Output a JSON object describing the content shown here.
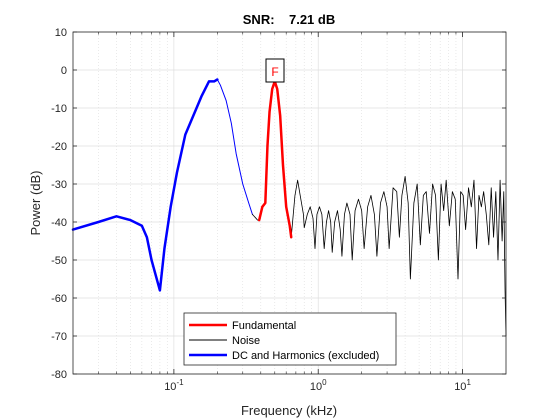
{
  "chart_data": {
    "type": "line",
    "title": "SNR:    7.21 dB",
    "xlabel": "Frequency (kHz)",
    "ylabel": "Power (dB)",
    "xscale": "log",
    "xlim": [
      0.02,
      20
    ],
    "ylim": [
      -80,
      10
    ],
    "yticks": [
      10,
      0,
      -10,
      -20,
      -30,
      -40,
      -50,
      -60,
      -70,
      -80
    ],
    "xticks": [
      {
        "value": 0.1,
        "base": "10",
        "exp": "-1"
      },
      {
        "value": 1,
        "base": "10",
        "exp": "0"
      },
      {
        "value": 10,
        "base": "10",
        "exp": "1"
      }
    ],
    "grid": true,
    "legend_placement": "bottom-center",
    "fundamental_marker": {
      "label": "F",
      "x": 0.5,
      "y": -3
    },
    "series": [
      {
        "name": "Fundamental",
        "color": "#ff0000",
        "width": 2.5,
        "points": [
          [
            0.39,
            -39.5
          ],
          [
            0.41,
            -36
          ],
          [
            0.43,
            -35
          ],
          [
            0.445,
            -20
          ],
          [
            0.46,
            -11
          ],
          [
            0.48,
            -5
          ],
          [
            0.5,
            -3
          ],
          [
            0.52,
            -5
          ],
          [
            0.545,
            -12
          ],
          [
            0.57,
            -25
          ],
          [
            0.6,
            -36
          ],
          [
            0.635,
            -41
          ],
          [
            0.65,
            -44
          ]
        ]
      },
      {
        "name": "Noise",
        "color": "#000000",
        "width": 0.8,
        "segments": [
          [
            [
              0.35,
              -38
            ],
            [
              0.37,
              -39
            ],
            [
              0.38,
              -39.5
            ],
            [
              0.39,
              -39.5
            ]
          ],
          [
            [
              0.65,
              -44
            ],
            [
              0.69,
              -33
            ],
            [
              0.72,
              -29
            ],
            [
              0.75,
              -33
            ],
            [
              0.79,
              -38
            ],
            [
              0.8,
              -41.5
            ],
            [
              0.84,
              -38
            ],
            [
              0.88,
              -36
            ],
            [
              0.92,
              -39
            ],
            [
              0.95,
              -47
            ],
            [
              0.98,
              -38
            ],
            [
              1.02,
              -36
            ],
            [
              1.06,
              -38
            ],
            [
              1.1,
              -47
            ],
            [
              1.14,
              -40
            ],
            [
              1.18,
              -37
            ],
            [
              1.22,
              -40
            ],
            [
              1.25,
              -48
            ],
            [
              1.3,
              -40
            ],
            [
              1.36,
              -37
            ],
            [
              1.42,
              -42
            ],
            [
              1.46,
              -49
            ],
            [
              1.52,
              -38
            ],
            [
              1.58,
              -35
            ],
            [
              1.66,
              -38
            ],
            [
              1.72,
              -50
            ],
            [
              1.8,
              -37
            ],
            [
              1.9,
              -34
            ],
            [
              2,
              -37
            ],
            [
              2.08,
              -47
            ],
            [
              2.2,
              -36
            ],
            [
              2.32,
              -33
            ],
            [
              2.45,
              -38
            ],
            [
              2.55,
              -49
            ],
            [
              2.7,
              -35
            ],
            [
              2.85,
              -32
            ],
            [
              3,
              -36
            ],
            [
              3.1,
              -47
            ],
            [
              3.3,
              -31
            ],
            [
              3.5,
              -32
            ],
            [
              3.65,
              -44
            ],
            [
              3.8,
              -33
            ],
            [
              4,
              -28
            ],
            [
              4.2,
              -35
            ],
            [
              4.35,
              -55
            ],
            [
              4.6,
              -35
            ],
            [
              4.85,
              -30
            ],
            [
              5.1,
              -46
            ],
            [
              5.35,
              -33
            ],
            [
              5.6,
              -32
            ],
            [
              5.9,
              -43
            ],
            [
              6.2,
              -30
            ],
            [
              6.5,
              -33
            ],
            [
              6.8,
              -50
            ],
            [
              7.1,
              -30
            ],
            [
              7.4,
              -37
            ],
            [
              7.7,
              -29
            ],
            [
              8.1,
              -41
            ],
            [
              8.5,
              -32
            ],
            [
              8.9,
              -34
            ],
            [
              9.3,
              -55
            ],
            [
              9.7,
              -32
            ],
            [
              10.1,
              -33
            ],
            [
              10.5,
              -42
            ],
            [
              11,
              -31
            ],
            [
              11.5,
              -36
            ],
            [
              12,
              -29
            ],
            [
              12.5,
              -47
            ],
            [
              13,
              -33
            ],
            [
              13.5,
              -36
            ],
            [
              14,
              -32
            ],
            [
              14.6,
              -38
            ],
            [
              15.2,
              -46
            ],
            [
              15.8,
              -31
            ],
            [
              16.4,
              -44
            ],
            [
              17,
              -32
            ],
            [
              17.6,
              -50
            ],
            [
              18.2,
              -29
            ],
            [
              18.8,
              -45
            ],
            [
              19.3,
              -32
            ],
            [
              19.7,
              -58
            ],
            [
              20,
              -70
            ]
          ]
        ]
      },
      {
        "name": "DC and Harmonics (excluded)",
        "color": "#0000ff",
        "width": 2.5,
        "segments": [
          [
            [
              0.02,
              -42
            ],
            [
              0.03,
              -40
            ],
            [
              0.04,
              -38.5
            ],
            [
              0.05,
              -39.5
            ],
            [
              0.06,
              -41
            ],
            [
              0.065,
              -44
            ],
            [
              0.07,
              -50
            ],
            [
              0.08,
              -58
            ],
            [
              0.086,
              -47
            ],
            [
              0.095,
              -36
            ],
            [
              0.105,
              -27
            ],
            [
              0.12,
              -17
            ],
            [
              0.14,
              -11
            ],
            [
              0.155,
              -7
            ],
            [
              0.175,
              -3
            ],
            [
              0.19,
              -3
            ],
            [
              0.2,
              -2.5
            ]
          ],
          [
            [
              0.2,
              -2.5
            ],
            [
              0.21,
              -4
            ],
            [
              0.23,
              -8
            ],
            [
              0.25,
              -14
            ],
            [
              0.27,
              -22
            ],
            [
              0.3,
              -30
            ],
            [
              0.33,
              -35
            ],
            [
              0.35,
              -38
            ]
          ]
        ]
      }
    ]
  }
}
